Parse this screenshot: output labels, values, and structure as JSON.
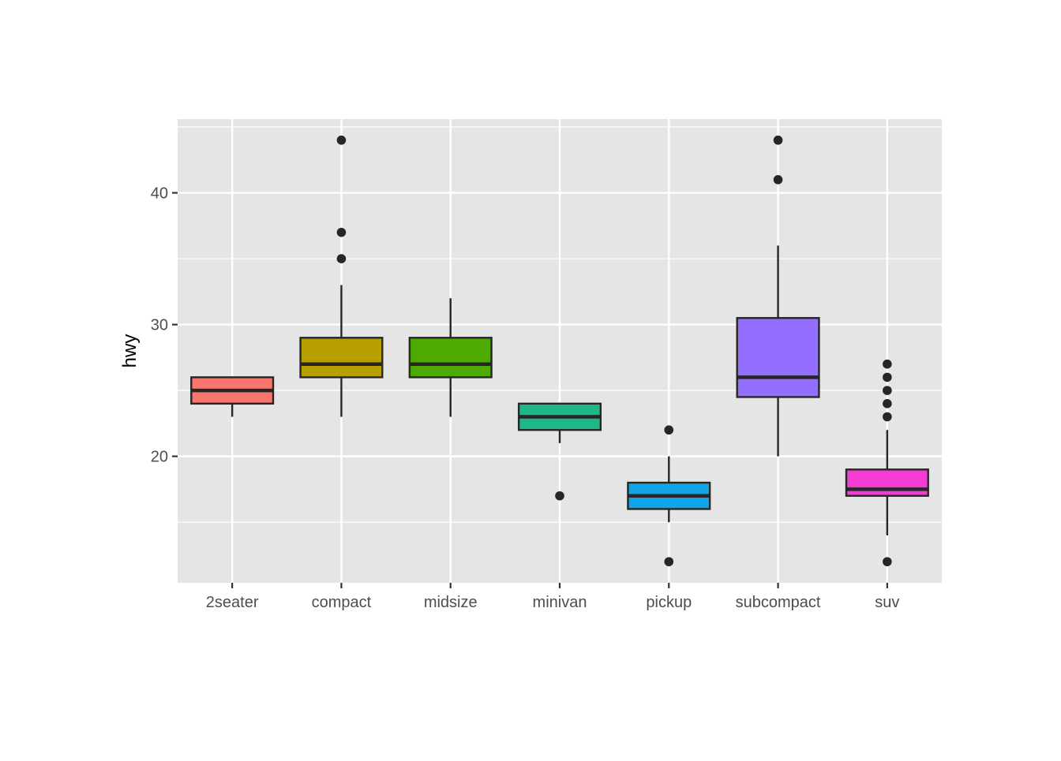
{
  "chart_data": {
    "type": "boxplot",
    "title": "",
    "xlabel": "",
    "ylabel": "hwy",
    "ylim": [
      10.4,
      45.6
    ],
    "y_major_ticks": [
      20,
      30,
      40
    ],
    "y_major_tick_labels": [
      "20",
      "30",
      "40"
    ],
    "y_minor_ticks": [
      15,
      25,
      35,
      45
    ],
    "grid": true,
    "panel_background": "#e5e5e5",
    "gridline_color": "#ffffff",
    "outline_color": "#262626",
    "categories": [
      "2seater",
      "compact",
      "midsize",
      "minivan",
      "pickup",
      "subcompact",
      "suv"
    ],
    "boxes": [
      {
        "category": "2seater",
        "color": "#f8766d",
        "whisker_low": 23,
        "q1": 24,
        "median": 25,
        "q3": 26,
        "whisker_high": 26,
        "outliers": []
      },
      {
        "category": "compact",
        "color": "#b79f00",
        "whisker_low": 23,
        "q1": 26,
        "median": 27,
        "q3": 29,
        "whisker_high": 33,
        "outliers": [
          35,
          37,
          44
        ]
      },
      {
        "category": "midsize",
        "color": "#4daa00",
        "whisker_low": 23,
        "q1": 26,
        "median": 27,
        "q3": 29,
        "whisker_high": 32,
        "outliers": []
      },
      {
        "category": "minivan",
        "color": "#1db887",
        "whisker_low": 21,
        "q1": 22,
        "median": 23,
        "q3": 24,
        "whisker_high": 24,
        "outliers": [
          17
        ]
      },
      {
        "category": "pickup",
        "color": "#10a6e6",
        "whisker_low": 15,
        "q1": 16,
        "median": 17,
        "q3": 18,
        "whisker_high": 20,
        "outliers": [
          12,
          22
        ]
      },
      {
        "category": "subcompact",
        "color": "#946fff",
        "whisker_low": 20,
        "q1": 24.5,
        "median": 26,
        "q3": 30.5,
        "whisker_high": 36,
        "outliers": [
          41,
          44
        ]
      },
      {
        "category": "suv",
        "color": "#f53cd2",
        "whisker_low": 14,
        "q1": 17,
        "median": 17.5,
        "q3": 19,
        "whisker_high": 22,
        "outliers": [
          12,
          23,
          24,
          25,
          26,
          27
        ]
      }
    ]
  }
}
